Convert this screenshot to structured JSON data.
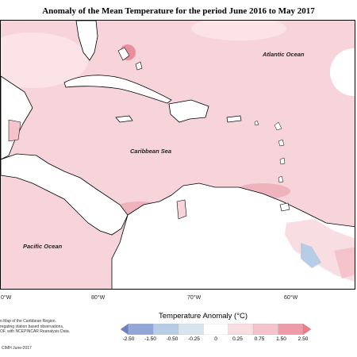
{
  "title": "Anomaly of the Mean Temperature for the period June 2016 to May 2017",
  "map": {
    "labels": {
      "atlantic": "Atlantic Ocean",
      "caribbean": "Caribbean Sea",
      "pacific": "Pacific Ocean"
    },
    "longitudes": [
      "0°W",
      "80°W",
      "70°W",
      "60°W"
    ]
  },
  "legend": {
    "title": "Temperature Anomaly (°C)",
    "ticks": [
      "-2.50",
      "-1.50",
      "-0.50",
      "-0.25",
      "0",
      "0.25",
      "0.75",
      "1.50",
      "2.50"
    ],
    "colors": [
      "#6f7fc4",
      "#92a6d8",
      "#b7cde6",
      "#d6e6ec",
      "#ffffff",
      "#f8dde2",
      "#f4c3cc",
      "#ee9aa8",
      "#f07a86"
    ]
  },
  "info": {
    "lines": [
      "n Map of the Caribbean Region.",
      "regating station based observations,",
      "OF, with NCEPINCAR Reanalysis Data."
    ]
  },
  "credit": "CIMH June-2017"
}
